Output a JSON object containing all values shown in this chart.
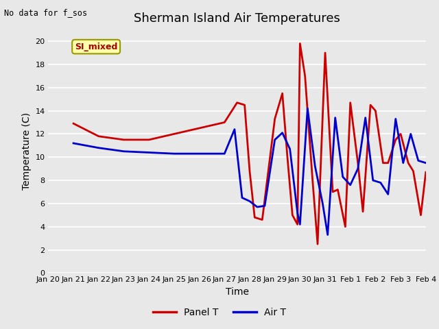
{
  "title": "Sherman Island Air Temperatures",
  "subtitle": "No data for f_sos",
  "xlabel": "Time",
  "ylabel": "Temperature (C)",
  "annotation_label": "SI_mixed",
  "bg_color": "#e8e8e8",
  "plot_bg_color": "#e8e8e8",
  "ylim": [
    0,
    21
  ],
  "yticks": [
    0,
    2,
    4,
    6,
    8,
    10,
    12,
    14,
    16,
    18,
    20
  ],
  "x_labels": [
    "Jan 20",
    "Jan 21",
    "Jan 22",
    "Jan 23",
    "Jan 24",
    "Jan 25",
    "Jan 26",
    "Jan 27",
    "Jan 28",
    "Jan 29",
    "Jan 30",
    "Jan 31",
    "Feb 1",
    "Feb 2",
    "Feb 3",
    "Feb 4"
  ],
  "panel_t_x": [
    1,
    2,
    3,
    4,
    5,
    6,
    7,
    7.5,
    7.8,
    8.0,
    8.2,
    8.5,
    9.0,
    9.3,
    9.5,
    9.7,
    9.9,
    10.0,
    10.2,
    10.5,
    10.7,
    11.0,
    11.3,
    11.5,
    11.8,
    12.0,
    12.3,
    12.5,
    12.8,
    13.0,
    13.3,
    13.5,
    13.8,
    14.0,
    14.3,
    14.5,
    14.8,
    15.0
  ],
  "panel_t_y": [
    12.9,
    11.8,
    11.5,
    11.5,
    12.0,
    12.5,
    13.0,
    14.7,
    14.5,
    8.8,
    4.8,
    4.6,
    13.3,
    15.5,
    10.0,
    5.0,
    4.2,
    19.8,
    17.0,
    8.0,
    2.5,
    19.0,
    7.0,
    7.2,
    4.0,
    14.7,
    9.5,
    5.3,
    14.5,
    14.0,
    9.5,
    9.5,
    11.5,
    12.0,
    9.5,
    8.8,
    5.0,
    8.7
  ],
  "air_t_x": [
    1,
    2,
    3,
    4,
    5,
    6,
    7,
    7.4,
    7.7,
    8.0,
    8.3,
    8.6,
    9.0,
    9.3,
    9.6,
    9.9,
    10.0,
    10.3,
    10.6,
    10.9,
    11.1,
    11.4,
    11.7,
    12.0,
    12.3,
    12.6,
    12.9,
    13.2,
    13.5,
    13.8,
    14.1,
    14.4,
    14.7,
    15.0
  ],
  "air_t_y": [
    11.2,
    10.8,
    10.5,
    10.4,
    10.3,
    10.3,
    10.3,
    12.4,
    6.5,
    6.2,
    5.7,
    5.8,
    11.5,
    12.1,
    10.7,
    5.2,
    4.2,
    14.2,
    9.2,
    6.0,
    3.3,
    13.4,
    8.3,
    7.6,
    9.0,
    13.4,
    8.0,
    7.8,
    6.8,
    13.3,
    9.5,
    12.0,
    9.7,
    9.5
  ],
  "panel_color": "#cc0000",
  "air_color": "#0000cc",
  "line_width": 2.0,
  "title_fontsize": 13,
  "label_fontsize": 10,
  "tick_fontsize": 8,
  "annotation_box_color": "#ffffaa",
  "annotation_text_color": "#aa0000",
  "annotation_border_color": "#999900",
  "annotation_fontsize": 9
}
